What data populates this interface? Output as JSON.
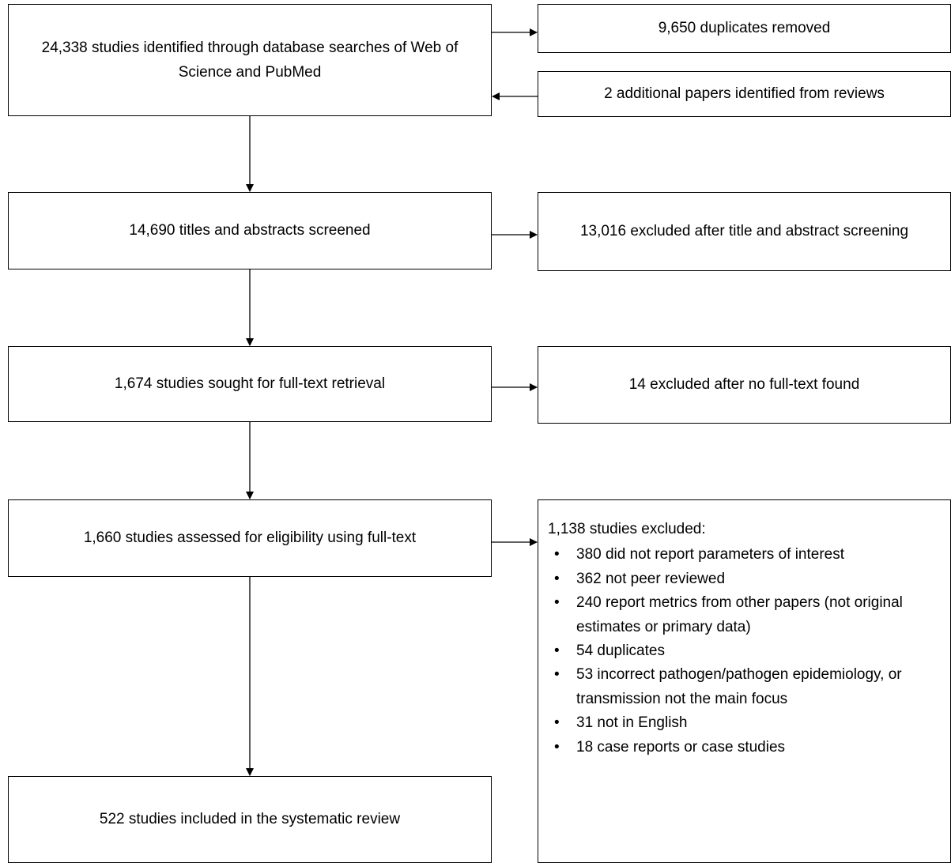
{
  "flow": {
    "identified": "24,338 studies identified through database searches of Web of Science and PubMed",
    "duplicates_removed": "9,650 duplicates removed",
    "additional": "2 additional papers identified from reviews",
    "screened": "14,690 titles and abstracts screened",
    "excluded_screening": "13,016 excluded after title and abstract screening",
    "sought": "1,674 studies sought for full-text retrieval",
    "excluded_no_fulltext": "14 excluded after no full-text found",
    "assessed": "1,660 studies assessed for eligibility using full-text",
    "included": "522 studies included in the systematic review",
    "excluded_eligibility": {
      "heading": "1,138 studies excluded:",
      "reasons": [
        "380 did not report parameters of interest",
        "362 not peer reviewed",
        "240 report metrics from other papers (not original estimates or primary data)",
        "54 duplicates",
        "53 incorrect pathogen/pathogen epidemiology, or transmission not the main focus",
        "31 not in English",
        "18 case reports or case studies"
      ]
    }
  }
}
